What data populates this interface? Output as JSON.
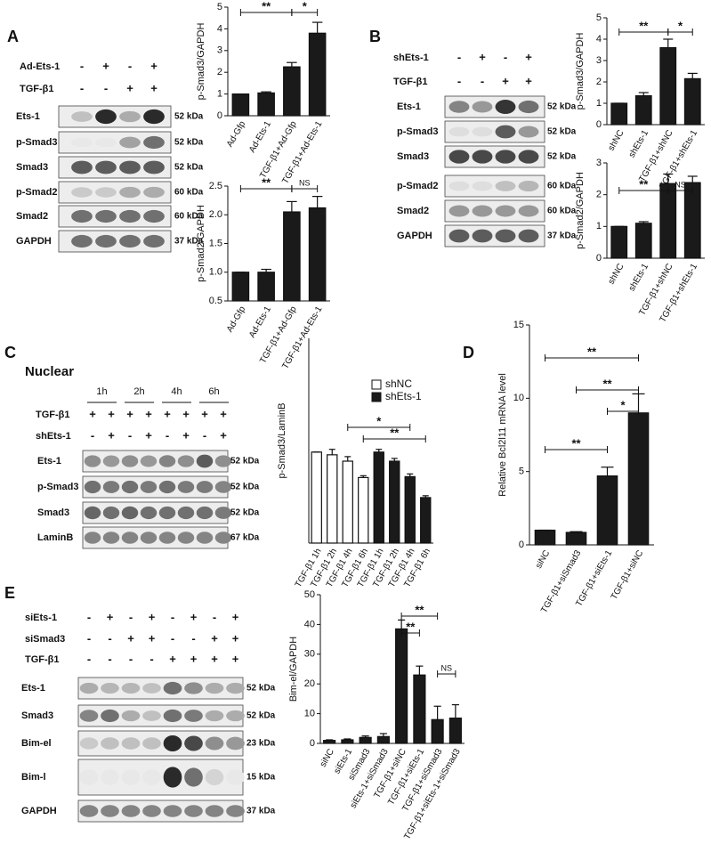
{
  "panels": [
    {
      "letter": "A",
      "treatments": [
        {
          "label": "Ad-Ets-1",
          "signs": [
            "-",
            "+",
            "-",
            "+"
          ]
        },
        {
          "label": "TGF-β1",
          "signs": [
            "-",
            "-",
            "+",
            "+"
          ]
        }
      ],
      "blots": [
        {
          "label": "Ets-1",
          "size": "52 kDa"
        },
        {
          "label": "p-Smad3",
          "size": "52 kDa"
        },
        {
          "label": "Smad3",
          "size": "52 kDa"
        },
        {
          "label": "p-Smad2",
          "size": "60 kDa"
        },
        {
          "label": "Smad2",
          "size": "60 kDa"
        },
        {
          "label": "GAPDH",
          "size": "37 kDa"
        }
      ]
    },
    {
      "letter": "B",
      "treatments": [
        {
          "label": "shEts-1",
          "signs": [
            "-",
            "+",
            "-",
            "+"
          ]
        },
        {
          "label": "TGF-β1",
          "signs": [
            "-",
            "-",
            "+",
            "+"
          ]
        }
      ],
      "blots": [
        {
          "label": "Ets-1",
          "size": "52 kDa"
        },
        {
          "label": "p-Smad3",
          "size": "52 kDa"
        },
        {
          "label": "Smad3",
          "size": "52 kDa"
        },
        {
          "label": "p-Smad2",
          "size": "60 kDa"
        },
        {
          "label": "Smad2",
          "size": "60 kDa"
        },
        {
          "label": "GAPDH",
          "size": "37 kDa"
        }
      ]
    },
    {
      "letter": "C",
      "title": "Nuclear",
      "times": [
        "1h",
        "2h",
        "4h",
        "6h"
      ],
      "treatments": [
        {
          "label": "TGF-β1",
          "signs": [
            "+",
            "+",
            "+",
            "+",
            "+",
            "+",
            "+",
            "+"
          ]
        },
        {
          "label": "shEts-1",
          "signs": [
            "-",
            "+",
            "-",
            "+",
            "-",
            "+",
            "-",
            "+"
          ]
        }
      ],
      "blots": [
        {
          "label": "Ets-1",
          "size": "52 kDa"
        },
        {
          "label": "p-Smad3",
          "size": "52 kDa"
        },
        {
          "label": "Smad3",
          "size": "52 kDa"
        },
        {
          "label": "LaminB",
          "size": "67 kDa"
        }
      ]
    },
    {
      "letter": "D"
    },
    {
      "letter": "E",
      "treatments": [
        {
          "label": "siEts-1",
          "signs": [
            "-",
            "+",
            "-",
            "+",
            "-",
            "+",
            "-",
            "+"
          ]
        },
        {
          "label": "siSmad3",
          "signs": [
            "-",
            "-",
            "+",
            "+",
            "-",
            "-",
            "+",
            "+"
          ]
        },
        {
          "label": "TGF-β1",
          "signs": [
            "-",
            "-",
            "-",
            "-",
            "+",
            "+",
            "+",
            "+"
          ]
        }
      ],
      "blots": [
        {
          "label": "Ets-1",
          "size": "52 kDa"
        },
        {
          "label": "Smad3",
          "size": "52 kDa"
        },
        {
          "label": "Bim-el",
          "size": "23 kDa"
        },
        {
          "label": "Bim-l",
          "size": "15 kDa"
        },
        {
          "label": "GAPDH",
          "size": "37 kDa"
        }
      ]
    }
  ],
  "chart_data": [
    {
      "type": "bar",
      "ylabel": "p-Smad3/GAPDH",
      "categories": [
        "Ad-Gfp",
        "Ad-Ets-1",
        "TGF-β1+Ad-Gfp",
        "TGF-β1+Ad-Ets-1"
      ],
      "values": [
        1,
        1.05,
        2.25,
        3.8
      ],
      "errors": [
        0,
        0.05,
        0.2,
        0.5
      ],
      "color": "#1a1a1a",
      "ylim": [
        0,
        5
      ],
      "yticks": [
        0,
        1,
        2,
        3,
        4,
        5
      ],
      "annotations": [
        {
          "text": "**",
          "from": 0,
          "to": 2
        },
        {
          "text": "*",
          "from": 2,
          "to": 3
        }
      ]
    },
    {
      "type": "bar",
      "ylabel": "p-Smad2/GAPDH",
      "categories": [
        "Ad-Gfp",
        "Ad-Ets-1",
        "TGF-β1+Ad-Gfp",
        "TGF-β1+Ad-Ets-1"
      ],
      "values": [
        1,
        1,
        2.05,
        2.12
      ],
      "errors": [
        0,
        0.05,
        0.18,
        0.2
      ],
      "color": "#1a1a1a",
      "ylim": [
        0.5,
        2.5
      ],
      "yticks": [
        0.5,
        {
          "value": 1,
          "label": "1.0"
        },
        1.5,
        {
          "value": 2,
          "label": "2.0"
        },
        2.5
      ],
      "annotations": [
        {
          "text": "**",
          "from": 0,
          "to": 2
        },
        {
          "text": "NS",
          "from": 2,
          "to": 3
        }
      ]
    },
    {
      "type": "bar",
      "ylabel": "p-Smad3/GAPDH",
      "categories": [
        "shNC",
        "shEts-1",
        "TGF-β1+shNC",
        "TGF-β1+shEts-1"
      ],
      "values": [
        1,
        1.35,
        3.6,
        2.15
      ],
      "errors": [
        0,
        0.15,
        0.4,
        0.25
      ],
      "color": "#1a1a1a",
      "ylim": [
        0,
        5
      ],
      "yticks": [
        0,
        1,
        2,
        3,
        4,
        5
      ],
      "annotations": [
        {
          "text": "**",
          "from": 0,
          "to": 2
        },
        {
          "text": "*",
          "from": 2,
          "to": 3
        }
      ]
    },
    {
      "type": "bar",
      "ylabel": "p-Smad2/GAPDH",
      "categories": [
        "shNC",
        "shEts-1",
        "TGF-β1+shNC",
        "TGF-β1+shEts-1"
      ],
      "values": [
        1,
        1.1,
        2.35,
        2.38
      ],
      "errors": [
        0,
        0.05,
        0.3,
        0.2
      ],
      "color": "#1a1a1a",
      "ylim": [
        0,
        3
      ],
      "yticks": [
        0,
        1,
        2,
        3
      ],
      "annotations": [
        {
          "text": "**",
          "from": 0,
          "to": 2
        },
        {
          "text": "NS",
          "from": 2,
          "to": 3
        }
      ]
    },
    {
      "type": "bar",
      "ylabel": "p-Smad3/LaminB",
      "categories": [
        "TGF-β1 1h",
        "TGF-β1 2h",
        "TGF-β1 4h",
        "TGF-β1 6h",
        "TGF-β1 1h",
        "TGF-β1 2h",
        "TGF-β1 4h",
        "TGF-β1 6h"
      ],
      "series": [
        {
          "name": "shNC",
          "color": "#ffffff",
          "values": [
            1,
            0.97,
            0.9,
            0.72,
            null,
            null,
            null,
            null
          ],
          "errors": [
            0,
            0.06,
            0.05,
            0.02,
            null,
            null,
            null,
            null
          ]
        },
        {
          "name": "shEts-1",
          "color": "#1a1a1a",
          "values": [
            null,
            null,
            null,
            null,
            1,
            0.9,
            0.73,
            0.5
          ],
          "errors": [
            null,
            null,
            null,
            null,
            0.03,
            0.03,
            0.03,
            0.02
          ]
        }
      ],
      "ylim": [
        0,
        2.25
      ],
      "annotations": [
        {
          "text": "*",
          "from": 2,
          "to": 6
        },
        {
          "text": "**",
          "from": 3,
          "to": 7
        }
      ]
    },
    {
      "type": "bar",
      "ylabel": "Relative Bcl2l11 mRNA level",
      "categories": [
        "siNC",
        "TGF-β1+siSmad3",
        "TGF-β1+siEts-1",
        "TGF-β1+siNC"
      ],
      "values": [
        1,
        0.85,
        4.7,
        9
      ],
      "errors": [
        0,
        0.05,
        0.6,
        1.3
      ],
      "color": "#1a1a1a",
      "ylim": [
        0,
        15
      ],
      "yticks": [
        0,
        5,
        10,
        15
      ],
      "annotations": [
        {
          "text": "**",
          "from": 0,
          "to": 3
        },
        {
          "text": "**",
          "from": 1,
          "to": 3
        },
        {
          "text": "*",
          "from": 2,
          "to": 3
        },
        {
          "text": "**",
          "from": 0,
          "to": 2
        }
      ]
    },
    {
      "type": "bar",
      "ylabel": "Bim-el/GAPDH",
      "categories": [
        "siNC",
        "siEts-1",
        "siSmad3",
        "siEts-1+siSmad3",
        "TGF-β1+siNC",
        "TGF-β1+siEts-1",
        "TGF-β1+siSmad3",
        "TGF-β1+siEts-1+siSmad3"
      ],
      "values": [
        1,
        1.2,
        2,
        2.3,
        38.5,
        23,
        8,
        8.5
      ],
      "errors": [
        0.2,
        0.3,
        0.5,
        1,
        3,
        3,
        4.5,
        4.5
      ],
      "color": "#1a1a1a",
      "ylim": [
        0,
        50
      ],
      "yticks": [
        0,
        10,
        20,
        30,
        40,
        50
      ],
      "annotations": [
        {
          "text": "**",
          "from": 4,
          "to": 6
        },
        {
          "text": "**",
          "from": 4,
          "to": 5
        },
        {
          "text": "NS",
          "from": 6,
          "to": 7
        }
      ]
    }
  ]
}
